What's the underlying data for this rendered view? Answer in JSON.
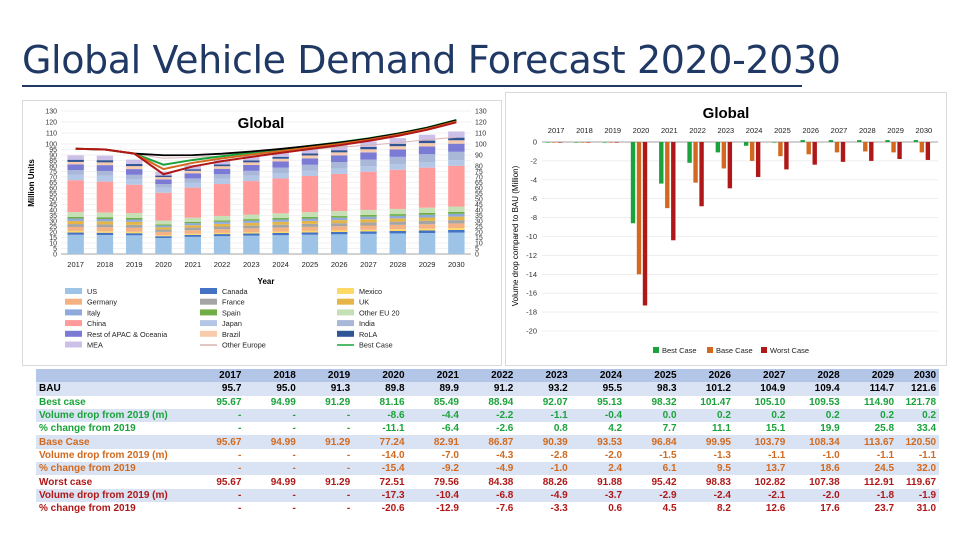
{
  "title": "Global Vehicle Demand Forecast 2020-2030",
  "colors": {
    "title": "#1f3864",
    "best": "#1aa33a",
    "base": "#d2691e",
    "worst": "#b01818",
    "black": "#000000",
    "table_header": "#b4c6e7",
    "table_band": "#dae3f3"
  },
  "chart_data": [
    {
      "type": "bar",
      "subtype": "stacked bar with lines",
      "title": "Global",
      "xlabel": "Year",
      "ylabel": "Million Units",
      "categories": [
        "2017",
        "2018",
        "2019",
        "2020",
        "2021",
        "2022",
        "2023",
        "2024",
        "2025",
        "2026",
        "2027",
        "2028",
        "2029",
        "2030"
      ],
      "ylim": [
        0,
        130
      ],
      "yticks": [
        0,
        5,
        10,
        15,
        20,
        25,
        30,
        35,
        40,
        45,
        50,
        55,
        60,
        65,
        70,
        75,
        80,
        85,
        90,
        95,
        100,
        110,
        120,
        130
      ],
      "secondary_yticks": [
        0,
        5,
        10,
        15,
        20,
        25,
        30,
        35,
        40,
        45,
        50,
        55,
        60,
        65,
        70,
        75,
        80,
        90,
        100,
        110,
        120,
        130
      ],
      "legend_position": "bottom",
      "series": [
        {
          "name": "US",
          "color": "#9dc3e6",
          "values": [
            17.5,
            17.3,
            17.0,
            14.6,
            15.6,
            16.2,
            16.7,
            17.1,
            17.5,
            17.9,
            18.3,
            18.7,
            19.1,
            19.5
          ]
        },
        {
          "name": "Canada",
          "color": "#4472c4",
          "values": [
            2.0,
            2.0,
            1.9,
            1.6,
            1.8,
            1.9,
            1.9,
            2.0,
            2.1,
            2.1,
            2.2,
            2.2,
            2.3,
            2.4
          ]
        },
        {
          "name": "Mexico",
          "color": "#ffd966",
          "values": [
            1.5,
            1.4,
            1.3,
            0.9,
            1.0,
            1.1,
            1.2,
            1.3,
            1.4,
            1.4,
            1.5,
            1.6,
            1.6,
            1.7
          ]
        },
        {
          "name": "Germany",
          "color": "#f4b183",
          "values": [
            3.6,
            3.6,
            3.6,
            3.0,
            3.3,
            3.4,
            3.5,
            3.6,
            3.7,
            3.8,
            3.9,
            4.0,
            4.1,
            4.2
          ]
        },
        {
          "name": "France",
          "color": "#a5a5a5",
          "values": [
            2.6,
            2.6,
            2.7,
            2.1,
            2.3,
            2.4,
            2.5,
            2.6,
            2.7,
            2.8,
            2.8,
            2.9,
            3.0,
            3.0
          ]
        },
        {
          "name": "UK",
          "color": "#e6b547",
          "values": [
            2.9,
            2.8,
            2.7,
            2.0,
            2.2,
            2.4,
            2.5,
            2.6,
            2.7,
            2.8,
            2.9,
            3.0,
            3.1,
            3.2
          ]
        },
        {
          "name": "Italy",
          "color": "#8ea9db",
          "values": [
            2.2,
            2.1,
            2.1,
            1.6,
            1.8,
            1.9,
            2.0,
            2.1,
            2.1,
            2.2,
            2.3,
            2.3,
            2.4,
            2.5
          ]
        },
        {
          "name": "Spain",
          "color": "#70ad47",
          "values": [
            1.5,
            1.6,
            1.5,
            1.1,
            1.2,
            1.3,
            1.4,
            1.4,
            1.5,
            1.5,
            1.6,
            1.6,
            1.7,
            1.7
          ]
        },
        {
          "name": "Other EU 20",
          "color": "#c5e0b4",
          "values": [
            4.3,
            4.4,
            4.4,
            3.5,
            3.8,
            4.0,
            4.2,
            4.3,
            4.4,
            4.5,
            4.6,
            4.7,
            4.8,
            4.9
          ]
        },
        {
          "name": "China",
          "color": "#ff9b9b",
          "values": [
            29.0,
            28.0,
            25.8,
            25.3,
            27.3,
            29.0,
            30.4,
            31.7,
            32.8,
            33.8,
            34.7,
            35.6,
            36.4,
            37.1
          ]
        },
        {
          "name": "Japan",
          "color": "#b4c7e7",
          "values": [
            5.2,
            5.3,
            5.2,
            4.6,
            4.7,
            4.8,
            4.8,
            4.9,
            4.9,
            5.0,
            5.0,
            5.1,
            5.1,
            5.1
          ]
        },
        {
          "name": "India",
          "color": "#a9b7d9",
          "values": [
            4.0,
            4.4,
            3.8,
            3.2,
            3.7,
            4.1,
            4.5,
            4.9,
            5.3,
            5.7,
            6.1,
            6.6,
            7.1,
            7.6
          ]
        },
        {
          "name": "Rest of APAC & Oceania",
          "color": "#7b7bd6",
          "values": [
            5.2,
            5.3,
            5.2,
            4.3,
            4.7,
            5.0,
            5.3,
            5.6,
            5.9,
            6.2,
            6.5,
            6.8,
            7.1,
            7.4
          ]
        },
        {
          "name": "Brazil",
          "color": "#f8cbad",
          "values": [
            2.2,
            2.5,
            2.7,
            2.1,
            2.2,
            2.3,
            2.4,
            2.5,
            2.6,
            2.7,
            2.8,
            2.9,
            3.0,
            3.1
          ]
        },
        {
          "name": "RoLA",
          "color": "#2f5597",
          "values": [
            2.0,
            2.0,
            1.9,
            1.4,
            1.5,
            1.6,
            1.7,
            1.8,
            1.9,
            2.0,
            2.1,
            2.2,
            2.3,
            2.4
          ]
        },
        {
          "name": "MEA",
          "color": "#ccc0e8",
          "values": [
            4.0,
            4.1,
            4.0,
            3.5,
            3.8,
            4.0,
            4.2,
            4.4,
            4.6,
            4.8,
            5.0,
            5.2,
            5.4,
            5.6
          ]
        }
      ],
      "lines": [
        {
          "name": "Other Europe",
          "color": "#d8b4b4",
          "values": [
            96,
            95,
            91,
            87,
            88,
            89,
            91,
            93,
            95,
            97,
            99,
            101,
            104,
            106
          ]
        },
        {
          "name": "Best Case",
          "color": "#1aa33a",
          "values": [
            95.7,
            95.0,
            91.3,
            81.2,
            85.5,
            88.9,
            92.1,
            95.1,
            98.3,
            101.5,
            105.1,
            109.5,
            114.9,
            121.8
          ]
        },
        {
          "name": "BAU",
          "color": "#000000",
          "values": [
            95.7,
            95.0,
            91.3,
            89.8,
            89.9,
            91.2,
            93.2,
            95.5,
            98.3,
            101.2,
            104.9,
            109.4,
            114.7,
            121.6
          ]
        },
        {
          "name": "Base Case",
          "color": "#d2691e",
          "values": [
            95.7,
            95.0,
            91.3,
            77.2,
            82.9,
            86.9,
            90.4,
            93.5,
            96.8,
            100.0,
            103.8,
            108.3,
            113.7,
            120.5
          ]
        },
        {
          "name": "Worst Case",
          "color": "#b01818",
          "values": [
            95.7,
            95.0,
            91.3,
            72.5,
            79.6,
            84.4,
            88.3,
            91.9,
            95.4,
            98.8,
            102.8,
            107.4,
            112.9,
            119.7
          ]
        }
      ],
      "legend": [
        "US",
        "Canada",
        "Mexico",
        "Germany",
        "France",
        "UK",
        "Italy",
        "Spain",
        "Other EU 20",
        "China",
        "Japan",
        "India",
        "Rest of APAC & Oceania",
        "Brazil",
        "RoLA",
        "MEA",
        "Other Europe",
        "Best Case"
      ]
    },
    {
      "type": "bar",
      "title": "Global",
      "ylabel": "Volume drop compared to BAU (Million)",
      "categories": [
        "2017",
        "2018",
        "2019",
        "2020",
        "2021",
        "2022",
        "2023",
        "2024",
        "2025",
        "2026",
        "2027",
        "2028",
        "2029",
        "2030"
      ],
      "ylim": [
        -20,
        0
      ],
      "yticks": [
        0,
        -2,
        -4,
        -6,
        -8,
        -10,
        -12,
        -14,
        -16,
        -18,
        -20
      ],
      "legend_position": "bottom",
      "series": [
        {
          "name": "Best Case",
          "color": "#1aa33a",
          "values": [
            0,
            0,
            0,
            -8.6,
            -4.4,
            -2.2,
            -1.1,
            -0.4,
            0.0,
            0.2,
            0.2,
            0.2,
            0.2,
            0.2
          ]
        },
        {
          "name": "Base Case",
          "color": "#d2691e",
          "values": [
            0,
            0,
            0,
            -14.0,
            -7.0,
            -4.3,
            -2.8,
            -2.0,
            -1.5,
            -1.3,
            -1.1,
            -1.0,
            -1.1,
            -1.1
          ]
        },
        {
          "name": "Worst Case",
          "color": "#b01818",
          "values": [
            0,
            0,
            0,
            -17.3,
            -10.4,
            -6.8,
            -4.9,
            -3.7,
            -2.9,
            -2.4,
            -2.1,
            -2.0,
            -1.8,
            -1.9
          ]
        }
      ]
    },
    {
      "type": "table",
      "columns": [
        "",
        "2017",
        "2018",
        "2019",
        "2020",
        "2021",
        "2022",
        "2023",
        "2024",
        "2025",
        "2026",
        "2027",
        "2028",
        "2029",
        "2030"
      ],
      "rows": [
        {
          "label": "BAU",
          "color": "#000000",
          "cells": [
            "95.7",
            "95.0",
            "91.3",
            "89.8",
            "89.9",
            "91.2",
            "93.2",
            "95.5",
            "98.3",
            "101.2",
            "104.9",
            "109.4",
            "114.7",
            "121.6"
          ]
        },
        {
          "label": "Best case",
          "color": "#1aa33a",
          "cells": [
            "95.67",
            "94.99",
            "91.29",
            "81.16",
            "85.49",
            "88.94",
            "92.07",
            "95.13",
            "98.32",
            "101.47",
            "105.10",
            "109.53",
            "114.90",
            "121.78"
          ]
        },
        {
          "label": "Volume drop from 2019 (m)",
          "color": "#1aa33a",
          "cells": [
            "-",
            "-",
            "-",
            "-8.6",
            "-4.4",
            "-2.2",
            "-1.1",
            "-0.4",
            "0.0",
            "0.2",
            "0.2",
            "0.2",
            "0.2",
            "0.2"
          ]
        },
        {
          "label": "% change from 2019",
          "color": "#1aa33a",
          "cells": [
            "-",
            "-",
            "-",
            "-11.1",
            "-6.4",
            "-2.6",
            "0.8",
            "4.2",
            "7.7",
            "11.1",
            "15.1",
            "19.9",
            "25.8",
            "33.4"
          ]
        },
        {
          "label": "Base Case",
          "color": "#d2691e",
          "cells": [
            "95.67",
            "94.99",
            "91.29",
            "77.24",
            "82.91",
            "86.87",
            "90.39",
            "93.53",
            "96.84",
            "99.95",
            "103.79",
            "108.34",
            "113.67",
            "120.50"
          ]
        },
        {
          "label": "Volume drop from 2019 (m)",
          "color": "#d2691e",
          "cells": [
            "-",
            "-",
            "-",
            "-14.0",
            "-7.0",
            "-4.3",
            "-2.8",
            "-2.0",
            "-1.5",
            "-1.3",
            "-1.1",
            "-1.0",
            "-1.1",
            "-1.1"
          ]
        },
        {
          "label": "% change from 2019",
          "color": "#d2691e",
          "cells": [
            "-",
            "-",
            "-",
            "-15.4",
            "-9.2",
            "-4.9",
            "-1.0",
            "2.4",
            "6.1",
            "9.5",
            "13.7",
            "18.6",
            "24.5",
            "32.0"
          ]
        },
        {
          "label": "Worst case",
          "color": "#b01818",
          "cells": [
            "95.67",
            "94.99",
            "91.29",
            "72.51",
            "79.56",
            "84.38",
            "88.26",
            "91.88",
            "95.42",
            "98.83",
            "102.82",
            "107.38",
            "112.91",
            "119.67"
          ]
        },
        {
          "label": "Volume drop from 2019 (m)",
          "color": "#b01818",
          "cells": [
            "-",
            "-",
            "-",
            "-17.3",
            "-10.4",
            "-6.8",
            "-4.9",
            "-3.7",
            "-2.9",
            "-2.4",
            "-2.1",
            "-2.0",
            "-1.8",
            "-1.9"
          ]
        },
        {
          "label": "% change from 2019",
          "color": "#b01818",
          "cells": [
            "-",
            "-",
            "-",
            "-20.6",
            "-12.9",
            "-7.6",
            "-3.3",
            "0.6",
            "4.5",
            "8.2",
            "12.6",
            "17.6",
            "23.7",
            "31.0"
          ]
        }
      ]
    }
  ]
}
